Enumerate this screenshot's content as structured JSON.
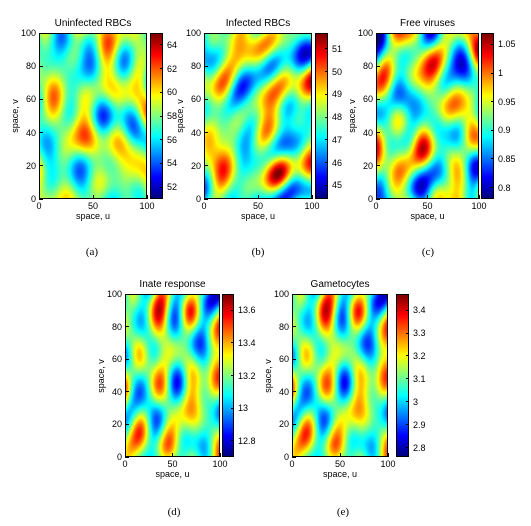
{
  "chart_data": [
    {
      "type": "heatmap",
      "title": "Uninfected RBCs",
      "caption": "(a)",
      "xlabel": "space, u",
      "ylabel": "space, v",
      "xlim": [
        0,
        100
      ],
      "ylim": [
        0,
        100
      ],
      "xticks": [
        "0",
        "50",
        "100"
      ],
      "yticks": [
        "0",
        "20",
        "40",
        "60",
        "80",
        "100"
      ],
      "colorbar": {
        "min": 51,
        "max": 65,
        "ticks": [
          "52",
          "54",
          "56",
          "58",
          "60",
          "62",
          "64"
        ]
      },
      "colormap": "jet",
      "seed": 11
    },
    {
      "type": "heatmap",
      "title": "Infected RBCs",
      "caption": "(b)",
      "xlabel": "space, u",
      "ylabel": "space, v",
      "xlim": [
        0,
        100
      ],
      "ylim": [
        0,
        100
      ],
      "xticks": [
        "0",
        "50",
        "100"
      ],
      "yticks": [
        "0",
        "20",
        "40",
        "60",
        "80",
        "100"
      ],
      "colorbar": {
        "min": 44.4,
        "max": 51.7,
        "ticks": [
          "45",
          "46",
          "47",
          "48",
          "49",
          "50",
          "51"
        ]
      },
      "colormap": "jet",
      "seed": 23
    },
    {
      "type": "heatmap",
      "title": "Free viruses",
      "caption": "(c)",
      "xlabel": "space, u",
      "ylabel": "space, v",
      "xlim": [
        0,
        100
      ],
      "ylim": [
        0,
        100
      ],
      "xticks": [
        "0",
        "50",
        "100"
      ],
      "yticks": [
        "0",
        "20",
        "40",
        "60",
        "80",
        "100"
      ],
      "colorbar": {
        "min": 0.78,
        "max": 1.07,
        "ticks": [
          "0.8",
          "0.85",
          "0.9",
          "0.95",
          "1",
          "1.05"
        ]
      },
      "colormap": "jet",
      "seed": 37
    },
    {
      "type": "heatmap",
      "title": "Inate response",
      "caption": "(d)",
      "xlabel": "space, u",
      "ylabel": "space, v",
      "xlim": [
        0,
        100
      ],
      "ylim": [
        0,
        100
      ],
      "xticks": [
        "0",
        "50",
        "100"
      ],
      "yticks": [
        "0",
        "20",
        "40",
        "60",
        "80",
        "100"
      ],
      "colorbar": {
        "min": 12.7,
        "max": 13.7,
        "ticks": [
          "12.8",
          "13",
          "13.2",
          "13.4",
          "13.6"
        ]
      },
      "colormap": "jet",
      "seed": 53
    },
    {
      "type": "heatmap",
      "title": "Gametocytes",
      "caption": "(e)",
      "xlabel": "space, u",
      "ylabel": "space, v",
      "xlim": [
        0,
        100
      ],
      "ylim": [
        0,
        100
      ],
      "xticks": [
        "0",
        "50",
        "100"
      ],
      "yticks": [
        "0",
        "20",
        "40",
        "60",
        "80",
        "100"
      ],
      "colorbar": {
        "min": 2.76,
        "max": 3.47,
        "ticks": [
          "2.8",
          "2.9",
          "3",
          "3.1",
          "3.2",
          "3.3",
          "3.4"
        ]
      },
      "colormap": "jet",
      "seed": 53
    }
  ]
}
